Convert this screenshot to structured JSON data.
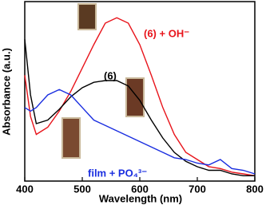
{
  "chart_data": {
    "type": "line",
    "x_label": "Wavelength (nm)",
    "y_label": "Absorbance (a.u.)",
    "x": [
      400,
      410,
      420,
      440,
      460,
      480,
      500,
      520,
      540,
      560,
      580,
      600,
      620,
      640,
      660,
      680,
      700,
      720,
      740,
      760,
      780,
      800
    ],
    "series": [
      {
        "name": "(6) + OH⁻",
        "color": "#e8141b",
        "values": [
          0.59,
          0.36,
          0.26,
          0.3,
          0.39,
          0.5,
          0.63,
          0.76,
          0.88,
          0.91,
          0.88,
          0.76,
          0.59,
          0.41,
          0.26,
          0.16,
          0.12,
          0.08,
          0.07,
          0.05,
          0.04,
          0.03
        ]
      },
      {
        "name": "(6)",
        "color": "#000000",
        "values": [
          0.79,
          0.48,
          0.32,
          0.34,
          0.4,
          0.47,
          0.52,
          0.55,
          0.56,
          0.56,
          0.53,
          0.45,
          0.34,
          0.24,
          0.16,
          0.11,
          0.08,
          0.06,
          0.06,
          0.04,
          0.03,
          0.03
        ]
      },
      {
        "name": "film  + PO₄³⁻",
        "color": "#1a2ee0",
        "values": [
          0.41,
          0.39,
          0.41,
          0.48,
          0.51,
          0.48,
          0.41,
          0.34,
          0.31,
          0.28,
          0.25,
          0.22,
          0.19,
          0.16,
          0.13,
          0.12,
          0.1,
          0.09,
          0.12,
          0.07,
          0.06,
          0.04
        ]
      }
    ],
    "xlim": [
      400,
      800
    ],
    "xticks": [
      400,
      500,
      600,
      700,
      800
    ],
    "ylim": [
      0,
      1
    ]
  }
}
